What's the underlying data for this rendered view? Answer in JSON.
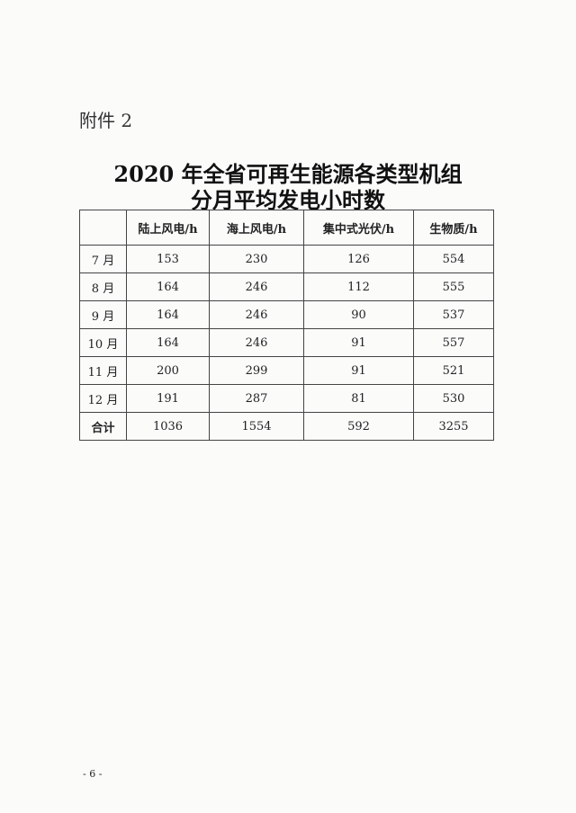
{
  "attachment_label": "附件 2",
  "title_line1": "2020 年全省可再生能源各类型机组",
  "title_line2": "分月平均发电小时数",
  "table": {
    "headers": [
      "",
      "陆上风电/h",
      "海上风电/h",
      "集中式光伏/h",
      "生物质/h"
    ],
    "rows": [
      [
        "7 月",
        "153",
        "230",
        "126",
        "554"
      ],
      [
        "8 月",
        "164",
        "246",
        "112",
        "555"
      ],
      [
        "9 月",
        "164",
        "246",
        "90",
        "537"
      ],
      [
        "10 月",
        "164",
        "246",
        "91",
        "557"
      ],
      [
        "11 月",
        "200",
        "299",
        "91",
        "521"
      ],
      [
        "12 月",
        "191",
        "287",
        "81",
        "530"
      ],
      [
        "合计",
        "1036",
        "1554",
        "592",
        "3255"
      ]
    ]
  },
  "page_number": "- 6 -"
}
